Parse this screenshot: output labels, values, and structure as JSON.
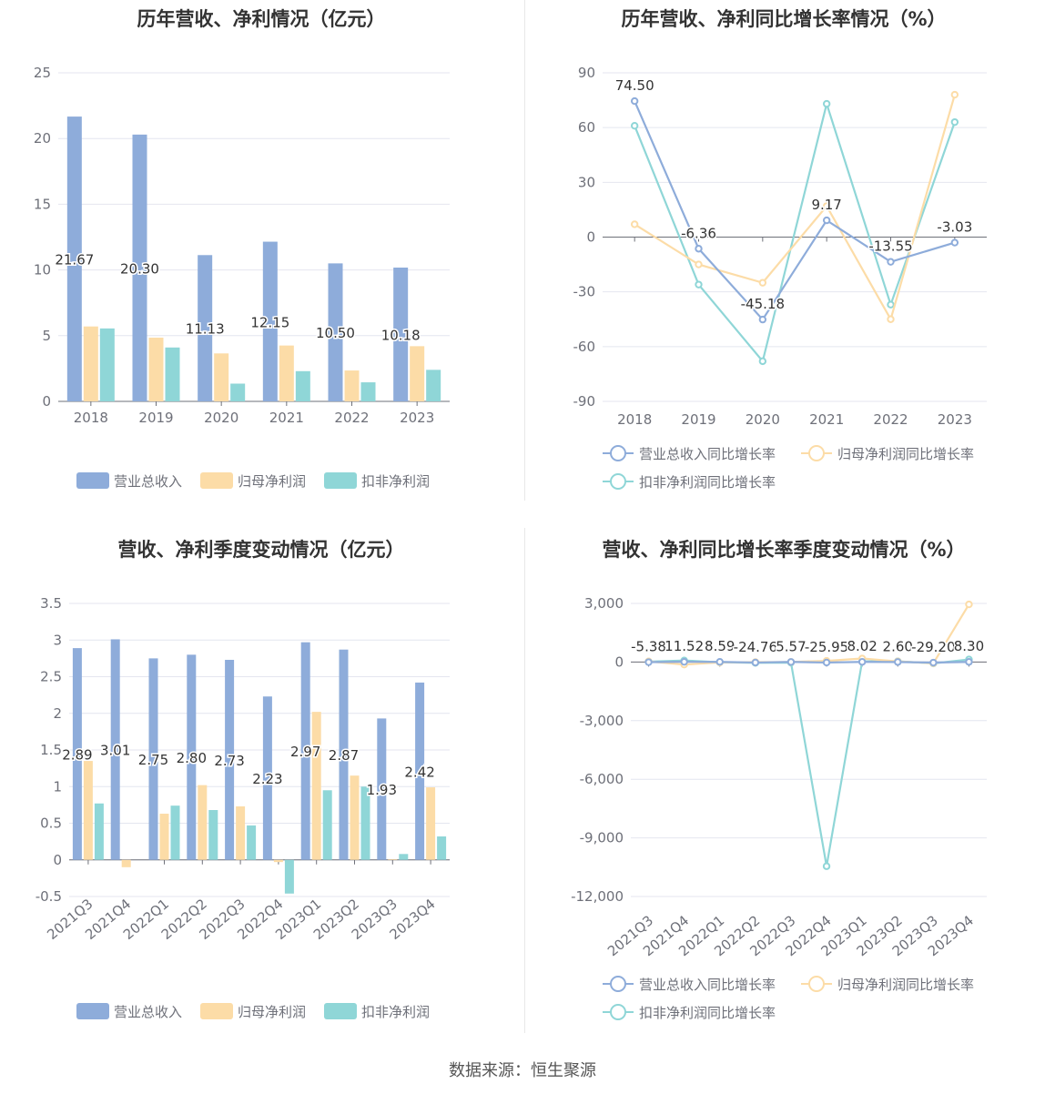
{
  "footer": "数据来源：恒生聚源",
  "colors": {
    "revenue": "#8eacda",
    "parent": "#fcdca7",
    "deducted": "#8fd6d7",
    "grid": "#e4e6ef",
    "axis": "#6e7079",
    "label": "#333333"
  },
  "chart_data": [
    {
      "type": "bar",
      "title": "历年营收、净利情况（亿元）",
      "categories": [
        "2018",
        "2019",
        "2020",
        "2021",
        "2022",
        "2023"
      ],
      "ylim": [
        0,
        25
      ],
      "yticks": [
        "0",
        "5",
        "10",
        "15",
        "20",
        "25"
      ],
      "grid": true,
      "legend_position": "bottom",
      "series": [
        {
          "name": "营业总收入",
          "values": [
            21.67,
            20.3,
            11.13,
            12.15,
            10.5,
            10.18
          ],
          "labels": [
            "21.67",
            "20.30",
            "11.13",
            "12.15",
            "10.50",
            "10.18"
          ]
        },
        {
          "name": "归母净利润",
          "values": [
            5.7,
            4.85,
            3.65,
            4.25,
            2.35,
            4.2
          ]
        },
        {
          "name": "扣非净利润",
          "values": [
            5.55,
            4.1,
            1.35,
            2.3,
            1.45,
            2.4
          ]
        }
      ]
    },
    {
      "type": "line",
      "title": "历年营收、净利同比增长率情况（%）",
      "categories": [
        "2018",
        "2019",
        "2020",
        "2021",
        "2022",
        "2023"
      ],
      "ylim": [
        -90,
        90
      ],
      "yticks": [
        "-90",
        "-60",
        "-30",
        "0",
        "30",
        "60",
        "90"
      ],
      "grid": true,
      "legend_position": "bottom",
      "series": [
        {
          "name": "营业总收入同比增长率",
          "values": [
            74.5,
            -6.36,
            -45.18,
            9.17,
            -13.55,
            -3.03
          ],
          "labels": [
            "74.50",
            "-6.36",
            "-45.18",
            "9.17",
            "-13.55",
            "-3.03"
          ]
        },
        {
          "name": "归母净利润同比增长率",
          "values": [
            7,
            -15,
            -25,
            17,
            -45,
            78
          ]
        },
        {
          "name": "扣非净利润同比增长率",
          "values": [
            61,
            -26,
            -68,
            73,
            -37,
            63
          ]
        }
      ]
    },
    {
      "type": "bar",
      "title": "营收、净利季度变动情况（亿元）",
      "categories": [
        "2021Q3",
        "2021Q4",
        "2022Q1",
        "2022Q2",
        "2022Q3",
        "2022Q4",
        "2023Q1",
        "2023Q2",
        "2023Q3",
        "2023Q4"
      ],
      "ylim": [
        -0.5,
        3.5
      ],
      "yticks": [
        "-0.5",
        "0",
        "0.5",
        "1",
        "1.5",
        "2",
        "2.5",
        "3",
        "3.5"
      ],
      "grid": true,
      "legend_position": "bottom",
      "series": [
        {
          "name": "营业总收入",
          "values": [
            2.89,
            3.01,
            2.75,
            2.8,
            2.73,
            2.23,
            2.97,
            2.87,
            1.93,
            2.42
          ],
          "labels": [
            "2.89",
            "3.01",
            "2.75",
            "2.80",
            "2.73",
            "2.23",
            "2.97",
            "2.87",
            "1.93",
            "2.42"
          ]
        },
        {
          "name": "归母净利润",
          "values": [
            1.35,
            -0.1,
            0.63,
            1.02,
            0.73,
            -0.03,
            2.02,
            1.15,
            0.01,
            0.99
          ]
        },
        {
          "name": "扣非净利润",
          "values": [
            0.77,
            0,
            0.74,
            0.68,
            0.47,
            -0.46,
            0.95,
            1.0,
            0.08,
            0.32
          ]
        }
      ]
    },
    {
      "type": "line",
      "title": "营收、净利同比增长率季度变动情况（%）",
      "categories": [
        "2021Q3",
        "2021Q4",
        "2022Q1",
        "2022Q2",
        "2022Q3",
        "2022Q4",
        "2023Q1",
        "2023Q2",
        "2023Q3",
        "2023Q4"
      ],
      "ylim": [
        -12000,
        3000
      ],
      "yticks": [
        "-12,000",
        "-9,000",
        "-6,000",
        "-3,000",
        "0",
        "3,000"
      ],
      "grid": true,
      "legend_position": "bottom",
      "series": [
        {
          "name": "营业总收入同比增长率",
          "values": [
            -5.38,
            11.52,
            8.59,
            -24.76,
            5.57,
            -25.95,
            8.02,
            2.6,
            -29.2,
            8.3
          ],
          "labels": [
            "-5.38",
            "11.52",
            "8.59",
            "-24.76",
            "5.57",
            "-25.95",
            "8.02",
            "2.60",
            "-29.20",
            "8.30"
          ]
        },
        {
          "name": "归母净利润同比增长率",
          "values": [
            30,
            -130,
            -20,
            -5,
            5,
            60,
            180,
            30,
            -60,
            2950
          ]
        },
        {
          "name": "扣非净利润同比增长率",
          "values": [
            20,
            80,
            -10,
            -40,
            -30,
            -10450,
            40,
            40,
            -70,
            130
          ]
        }
      ]
    }
  ]
}
